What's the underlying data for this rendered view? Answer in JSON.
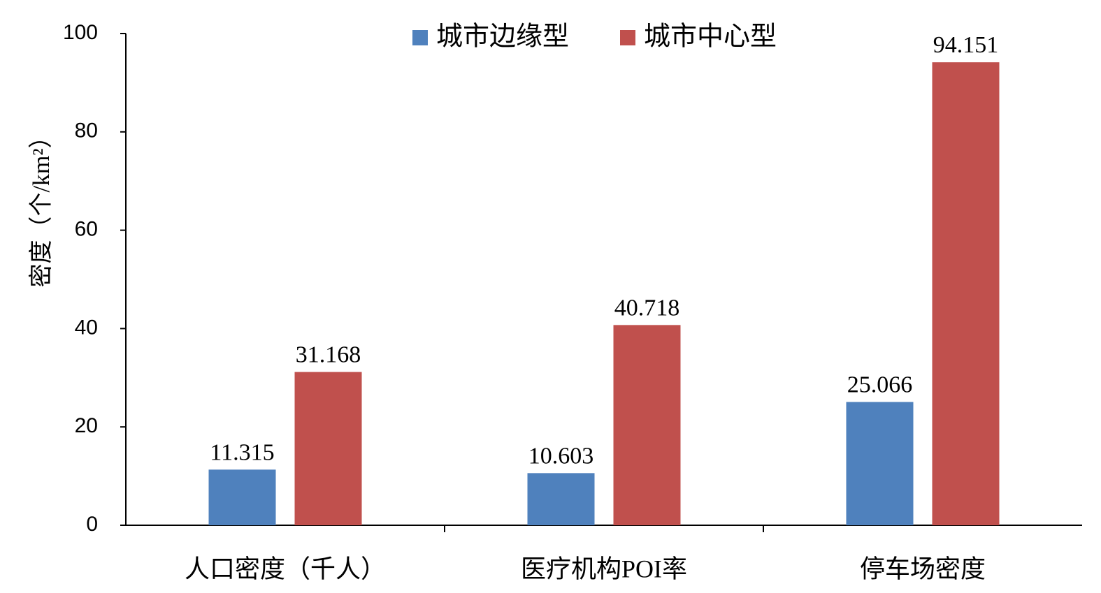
{
  "chart_data": {
    "type": "bar",
    "ylabel": "密度（个/km²）",
    "ylim": [
      0,
      100
    ],
    "yticks": [
      "0",
      "20",
      "40",
      "60",
      "80",
      "100"
    ],
    "categories": [
      "人口密度（千人）",
      "医疗机构POI率",
      "停车场密度"
    ],
    "series": [
      {
        "name": "城市边缘型",
        "color": "#4f81bd",
        "values": [
          11.315,
          10.603,
          25.066
        ],
        "labels": [
          "11.315",
          "10.603",
          "25.066"
        ]
      },
      {
        "name": "城市中心型",
        "color": "#c0504d",
        "values": [
          31.168,
          40.718,
          94.151
        ],
        "labels": [
          "31.168",
          "40.718",
          "94.151"
        ]
      }
    ],
    "legend": "top-center",
    "grid": false
  }
}
